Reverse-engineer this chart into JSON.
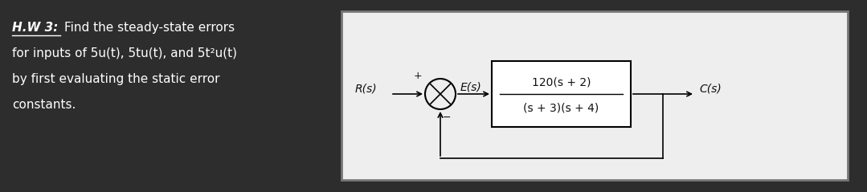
{
  "background_color": "#2d2d2d",
  "panel_color": "#eeeeee",
  "text_color": "#111111",
  "hw_label": "H.W 3:",
  "line1": "Find the steady-state errors",
  "line2": "for inputs of 5u(t), 5tu(t), and 5t²u(t)",
  "line3": "by first evaluating the static error",
  "line4": "constants.",
  "tf_numerator": "120(s + 2)",
  "tf_denominator": "(s + 3)(s + 4)",
  "label_R": "R(s)",
  "label_E": "E(s)",
  "label_C": "C(s)",
  "plus_sign": "+",
  "minus_sign": "−",
  "font_size_text": 11,
  "font_size_labels": 10,
  "font_size_tf": 10
}
